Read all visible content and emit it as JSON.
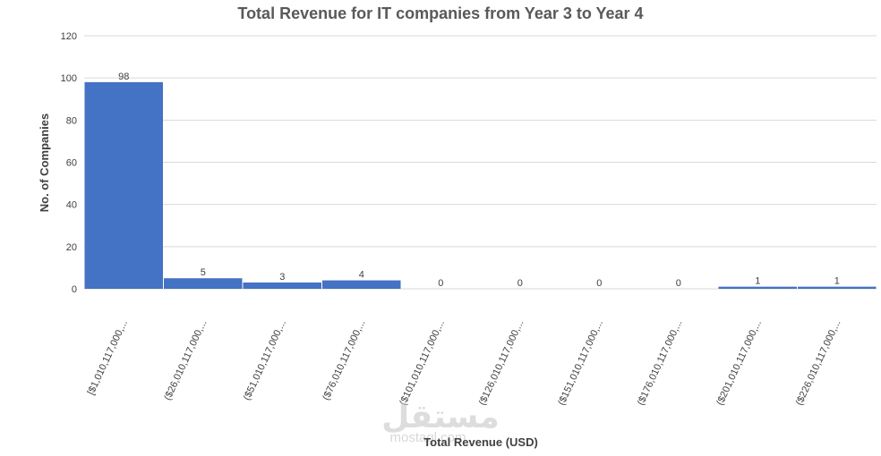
{
  "chart_data": {
    "type": "bar",
    "title": "Total Revenue for IT companies from Year 3 to Year 4",
    "xlabel": "Total Revenue (USD)",
    "ylabel": "No. of Companies",
    "ylim": [
      0,
      120
    ],
    "yticks": [
      0,
      20,
      40,
      60,
      80,
      100,
      120
    ],
    "grid": true,
    "color": "#4472c4",
    "categories": [
      "[$1,010,117,000,...",
      "($26,010,117,000,...",
      "($51,010,117,000,...",
      "($76,010,117,000,...",
      "($101,010,117,000,...",
      "($126,010,117,000,...",
      "($151,010,117,000,...",
      "($176,010,117,000,...",
      "($201,010,117,000,...",
      "($226,010,117,000,..."
    ],
    "values": [
      98,
      5,
      3,
      4,
      0,
      0,
      0,
      0,
      1,
      1
    ]
  },
  "watermark": {
    "logo_text": "مستقل",
    "site": "mostaql.com"
  }
}
